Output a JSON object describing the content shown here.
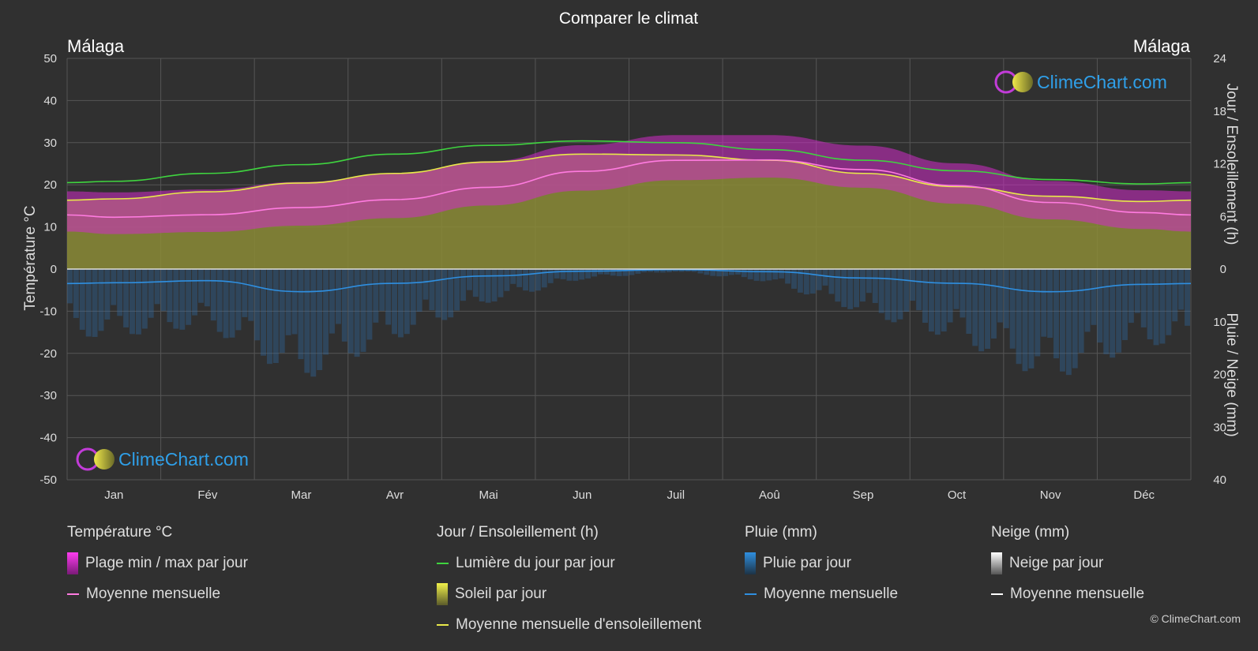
{
  "title": "Comparer le climat",
  "location_left": "Málaga",
  "location_right": "Málaga",
  "axes": {
    "left_label": "Température °C",
    "right_top_label": "Jour / Ensoleillement (h)",
    "right_bottom_label": "Pluie / Neige (mm)",
    "left_ticks": [
      "50",
      "40",
      "30",
      "20",
      "10",
      "0",
      "-10",
      "-20",
      "-30",
      "-40",
      "-50"
    ],
    "right_top_ticks": [
      "24",
      "18",
      "12",
      "6",
      "0"
    ],
    "right_bottom_ticks": [
      "10",
      "20",
      "30",
      "40"
    ]
  },
  "brand": "ClimeChart.com",
  "copyright": "© ClimeChart.com",
  "colors": {
    "background": "#303030",
    "daylight": "#3fd43f",
    "sunshine_fill": "#8b8b36",
    "sunshine_line": "#e8e84a",
    "temp_range": "#c02ab8",
    "temp_mean": "#ff7be0",
    "rain": "#2f8fe0",
    "brand_text": "#2f9fe8"
  },
  "legend": {
    "temperature": {
      "title": "Température °C",
      "range": "Plage min / max par jour",
      "mean": "Moyenne mensuelle"
    },
    "sun": {
      "title": "Jour / Ensoleillement (h)",
      "daylight": "Lumière du jour par jour",
      "sunshine": "Soleil par jour",
      "sunshine_mean": "Moyenne mensuelle d'ensoleillement"
    },
    "rain": {
      "title": "Pluie (mm)",
      "daily": "Pluie par jour",
      "mean": "Moyenne mensuelle"
    },
    "snow": {
      "title": "Neige (mm)",
      "daily": "Neige par jour",
      "mean": "Moyenne mensuelle"
    }
  },
  "chart_data": {
    "type": "line",
    "title": "Comparer le climat",
    "categories": [
      "Jan",
      "Fév",
      "Mar",
      "Avr",
      "Mai",
      "Jun",
      "Juil",
      "Aoû",
      "Sep",
      "Oct",
      "Nov",
      "Déc"
    ],
    "temp_ylim": [
      -50,
      50
    ],
    "sun_ylim": [
      0,
      24
    ],
    "precip_ylim": [
      0,
      40
    ],
    "grid": true,
    "series": [
      {
        "name": "Lumière du jour par jour",
        "axis": "hours",
        "values": [
          10.0,
          10.9,
          11.9,
          13.1,
          14.1,
          14.6,
          14.4,
          13.6,
          12.4,
          11.2,
          10.2,
          9.7
        ]
      },
      {
        "name": "Moyenne mensuelle d'ensoleillement",
        "axis": "hours",
        "values": [
          8.0,
          8.8,
          9.8,
          10.9,
          12.2,
          13.1,
          13.0,
          12.4,
          10.9,
          9.4,
          8.3,
          7.7
        ]
      },
      {
        "name": "Moyenne mensuelle",
        "axis": "temperature",
        "values": [
          12.3,
          12.9,
          14.6,
          16.5,
          19.4,
          23.2,
          25.8,
          25.9,
          23.6,
          19.8,
          15.8,
          13.4
        ]
      },
      {
        "name": "Plage min / max par jour",
        "axis": "temperature",
        "min": [
          8.3,
          8.8,
          10.3,
          12.1,
          15.1,
          18.6,
          21.1,
          21.7,
          19.3,
          15.5,
          11.8,
          9.5
        ],
        "max": [
          18.2,
          18.9,
          20.7,
          22.6,
          25.6,
          29.4,
          31.8,
          31.8,
          29.3,
          25.1,
          20.9,
          18.7
        ]
      },
      {
        "name": "Moyenne mensuelle",
        "axis": "rain",
        "values": [
          2.6,
          2.2,
          4.3,
          2.7,
          1.3,
          0.4,
          0.1,
          0.5,
          1.7,
          2.7,
          4.3,
          2.9
        ]
      }
    ]
  }
}
